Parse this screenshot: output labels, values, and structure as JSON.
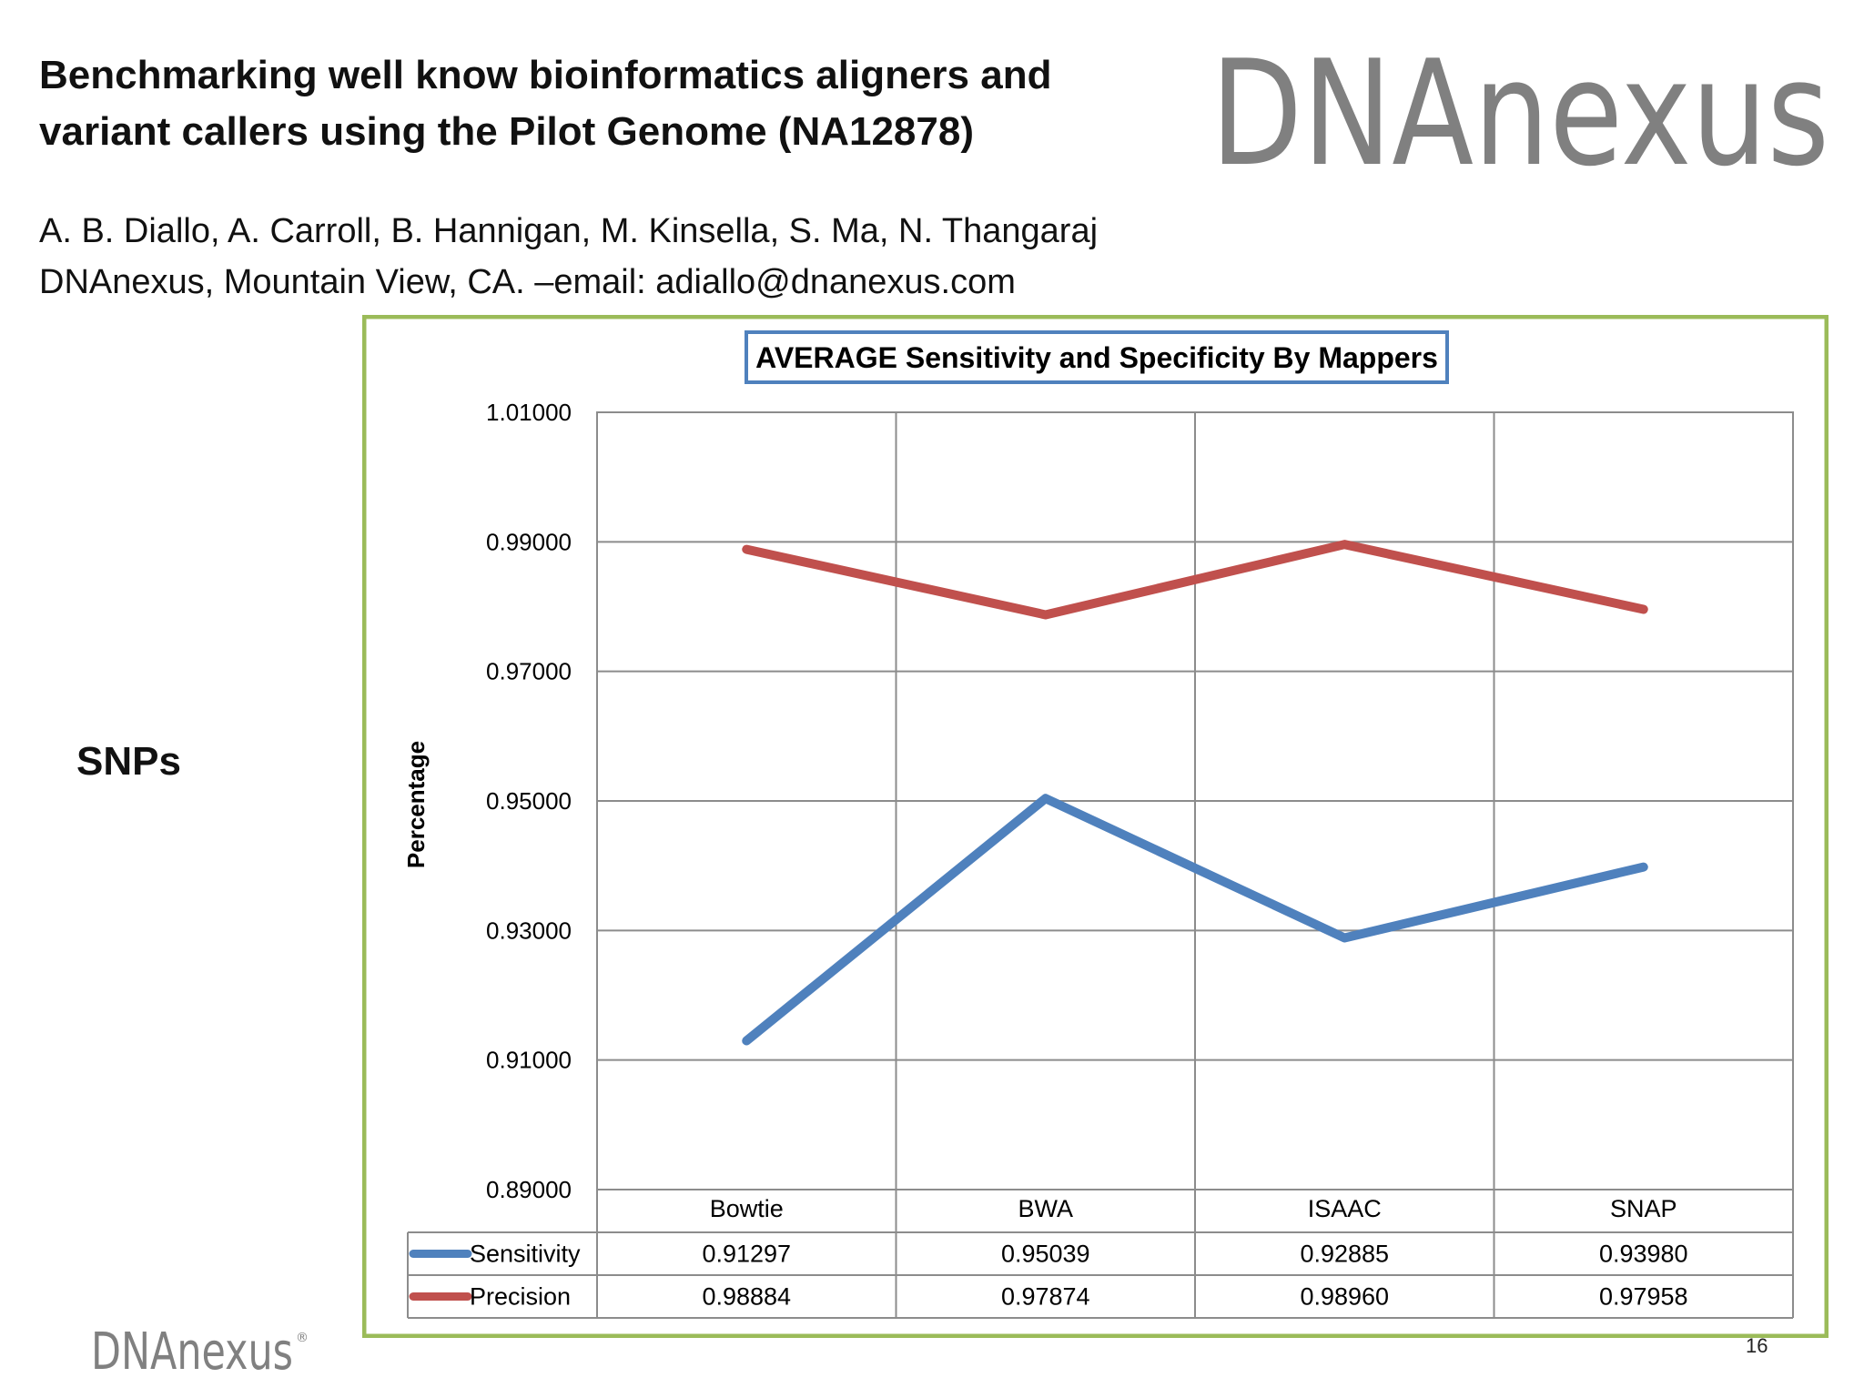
{
  "slide": {
    "title_line1": "Benchmarking well know bioinformatics aligners and",
    "title_line2": "variant callers using the Pilot Genome (NA12878)",
    "authors_line1": "A. B. Diallo, A. Carroll, B. Hannigan, M. Kinsella, S. Ma,  N. Thangaraj",
    "authors_line2": "DNAnexus, Mountain View, CA. –email: adiallo@dnanexus.com",
    "side_label": "SNPs",
    "slide_number": "16",
    "logo_text": "DNAnexus",
    "logo_registered": "®"
  },
  "colors": {
    "frame": "#9bbb59",
    "title_box": "#4f81bd",
    "sensitivity": "#4f81bd",
    "precision": "#c0504d",
    "grid": "#8c8c8c",
    "logo_gray": "#808080",
    "logo_blue": "#2a9fd8",
    "logo_green": "#8dc63f"
  },
  "chart_data": {
    "type": "line",
    "title": "AVERAGE Sensitivity and Specificity By Mappers",
    "xlabel": "",
    "ylabel": "Percentage",
    "ylim": [
      0.89,
      1.01
    ],
    "y_ticks": [
      "1.01000",
      "0.99000",
      "0.97000",
      "0.95000",
      "0.93000",
      "0.91000",
      "0.89000"
    ],
    "y_tick_values": [
      1.01,
      0.99,
      0.97,
      0.95,
      0.93,
      0.91,
      0.89
    ],
    "grid": true,
    "legend": "data-table",
    "categories": [
      "Bowtie",
      "BWA",
      "ISAAC",
      "SNAP"
    ],
    "series": [
      {
        "name": "Sensitivity",
        "values": [
          0.91297,
          0.95039,
          0.92885,
          0.9398
        ],
        "labels": [
          "0.91297",
          "0.95039",
          "0.92885",
          "0.93980"
        ],
        "color": "#4f81bd"
      },
      {
        "name": "Precision",
        "values": [
          0.98884,
          0.97874,
          0.9896,
          0.97958
        ],
        "labels": [
          "0.98884",
          "0.97874",
          "0.98960",
          "0.97958"
        ],
        "color": "#c0504d"
      }
    ]
  }
}
